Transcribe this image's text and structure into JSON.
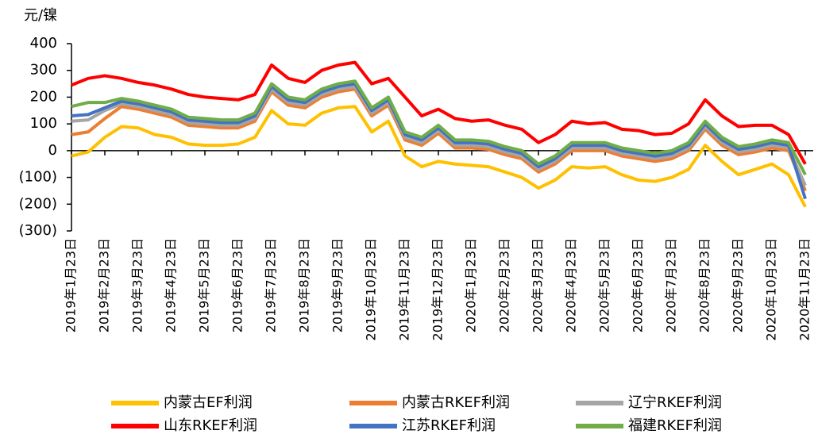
{
  "chart_data": {
    "type": "line",
    "y_unit_label": "元/镍",
    "categories": [
      "2019年1月23日",
      null,
      "2019年2月23日",
      null,
      "2019年3月23日",
      null,
      "2019年4月23日",
      null,
      "2019年5月23日",
      null,
      "2019年6月23日",
      null,
      "2019年7月23日",
      null,
      "2019年8月23日",
      null,
      "2019年9月23日",
      null,
      "2019年10月23日",
      null,
      "2019年11月23日",
      null,
      "2019年12月23日",
      null,
      "2020年1月23日",
      null,
      "2020年2月23日",
      null,
      "2020年3月23日",
      null,
      "2020年4月23日",
      null,
      "2020年5月23日",
      null,
      "2020年6月23日",
      null,
      "2020年7月23日",
      null,
      "2020年8月23日",
      null,
      "2020年9月23日",
      null,
      "2020年10月23日",
      null,
      "2020年11月23日"
    ],
    "series": [
      {
        "name": "内蒙古EF利润",
        "color": "#ffc000",
        "values": [
          -20,
          -5,
          50,
          90,
          85,
          60,
          50,
          25,
          20,
          20,
          25,
          50,
          150,
          100,
          95,
          140,
          160,
          165,
          70,
          110,
          -20,
          -60,
          -40,
          -50,
          -55,
          -60,
          -80,
          -100,
          -140,
          -110,
          -60,
          -65,
          -60,
          -90,
          -110,
          -115,
          -100,
          -70,
          20,
          -40,
          -90,
          -70,
          -50,
          -90,
          -210
        ]
      },
      {
        "name": "内蒙古RKEF利润",
        "color": "#ed7d31",
        "values": [
          60,
          70,
          120,
          165,
          155,
          140,
          125,
          95,
          90,
          85,
          85,
          110,
          220,
          170,
          160,
          200,
          220,
          230,
          130,
          170,
          40,
          20,
          65,
          10,
          10,
          5,
          -15,
          -30,
          -80,
          -50,
          0,
          0,
          0,
          -20,
          -30,
          -40,
          -30,
          0,
          80,
          20,
          -15,
          -5,
          10,
          0,
          -150
        ]
      },
      {
        "name": "辽宁RKEF利润",
        "color": "#a5a5a5",
        "values": [
          110,
          115,
          150,
          175,
          165,
          150,
          135,
          105,
          100,
          95,
          95,
          120,
          230,
          180,
          170,
          210,
          230,
          240,
          140,
          180,
          50,
          30,
          75,
          20,
          20,
          15,
          -5,
          -20,
          -70,
          -40,
          10,
          10,
          10,
          -10,
          -20,
          -30,
          -20,
          10,
          90,
          30,
          -5,
          5,
          20,
          10,
          -130
        ]
      },
      {
        "name": "山东RKEF利润",
        "color": "#ff0000",
        "values": [
          245,
          270,
          280,
          270,
          255,
          245,
          230,
          210,
          200,
          195,
          190,
          210,
          320,
          270,
          255,
          300,
          320,
          330,
          250,
          270,
          200,
          130,
          155,
          120,
          110,
          115,
          95,
          80,
          30,
          60,
          110,
          100,
          105,
          80,
          75,
          60,
          65,
          100,
          190,
          130,
          90,
          95,
          95,
          60,
          -50
        ]
      },
      {
        "name": "江苏RKEF利润",
        "color": "#4472c4",
        "values": [
          130,
          135,
          160,
          185,
          175,
          160,
          145,
          115,
          110,
          105,
          105,
          130,
          240,
          190,
          180,
          220,
          240,
          250,
          150,
          190,
          60,
          40,
          85,
          30,
          30,
          25,
          5,
          -10,
          -60,
          -30,
          20,
          20,
          20,
          0,
          -10,
          -20,
          -10,
          20,
          100,
          40,
          5,
          15,
          30,
          20,
          -180
        ]
      },
      {
        "name": "福建RKEF利润",
        "color": "#70ad47",
        "values": [
          165,
          180,
          180,
          195,
          185,
          170,
          155,
          125,
          120,
          115,
          115,
          140,
          250,
          200,
          190,
          230,
          250,
          260,
          160,
          200,
          70,
          50,
          95,
          40,
          40,
          35,
          15,
          0,
          -50,
          -20,
          30,
          30,
          30,
          10,
          0,
          -10,
          0,
          30,
          110,
          50,
          15,
          25,
          40,
          30,
          -90
        ]
      }
    ],
    "ylim": [
      -300,
      400
    ],
    "yticks": [
      {
        "value": -300,
        "label": "(300)"
      },
      {
        "value": -200,
        "label": "(200)"
      },
      {
        "value": -100,
        "label": "(100)"
      },
      0,
      100,
      200,
      300,
      400
    ],
    "negative_tick_color": "#e00000",
    "legend": "bottom"
  }
}
